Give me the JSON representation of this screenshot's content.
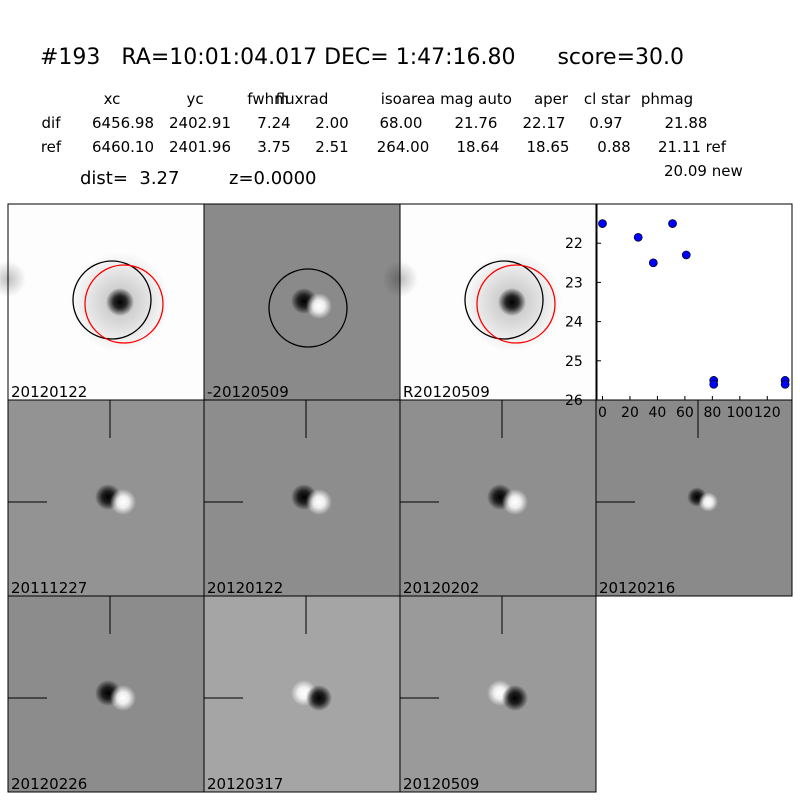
{
  "header": {
    "title": "#193   RA=10:01:04.017 DEC= 1:47:16.80      score=30.0"
  },
  "table": {
    "columns": [
      "xc",
      "yc",
      "fwhm",
      "fluxrad",
      "isoarea",
      "mag auto",
      "aper",
      "cl star",
      "phmag"
    ],
    "rows": [
      [
        "dif",
        "6456.98",
        "2402.91",
        "7.24",
        "2.00",
        "68.00",
        "21.76",
        "22.17",
        "0.97",
        "21.88"
      ],
      [
        "ref",
        "6460.10",
        "2401.96",
        "3.75",
        "2.51",
        "264.00",
        "18.64",
        "18.65",
        "0.88",
        "21.11 ref"
      ]
    ],
    "extra": "20.09 new"
  },
  "info": {
    "dist": "dist=  3.27",
    "z": "z=0.0000"
  },
  "stamps": [
    "20120122",
    "-20120509",
    "R20120509",
    "20111227",
    "20120122",
    "20120202",
    "20120216",
    "20120226",
    "20120317",
    "20120509"
  ],
  "chart_data": {
    "type": "scatter",
    "color": "#0000ff",
    "x": [
      0,
      26,
      37,
      51,
      61,
      81,
      81,
      133,
      133
    ],
    "values": [
      21.5,
      21.85,
      22.5,
      21.5,
      22.3,
      25.5,
      25.6,
      25.5,
      25.6
    ],
    "xlim": [
      -4,
      138
    ],
    "xticks": [
      0,
      20,
      40,
      60,
      80,
      100,
      120
    ],
    "ylim": [
      21,
      26
    ],
    "yticks": [
      22,
      23,
      24,
      25,
      26
    ],
    "invert_y": true
  }
}
